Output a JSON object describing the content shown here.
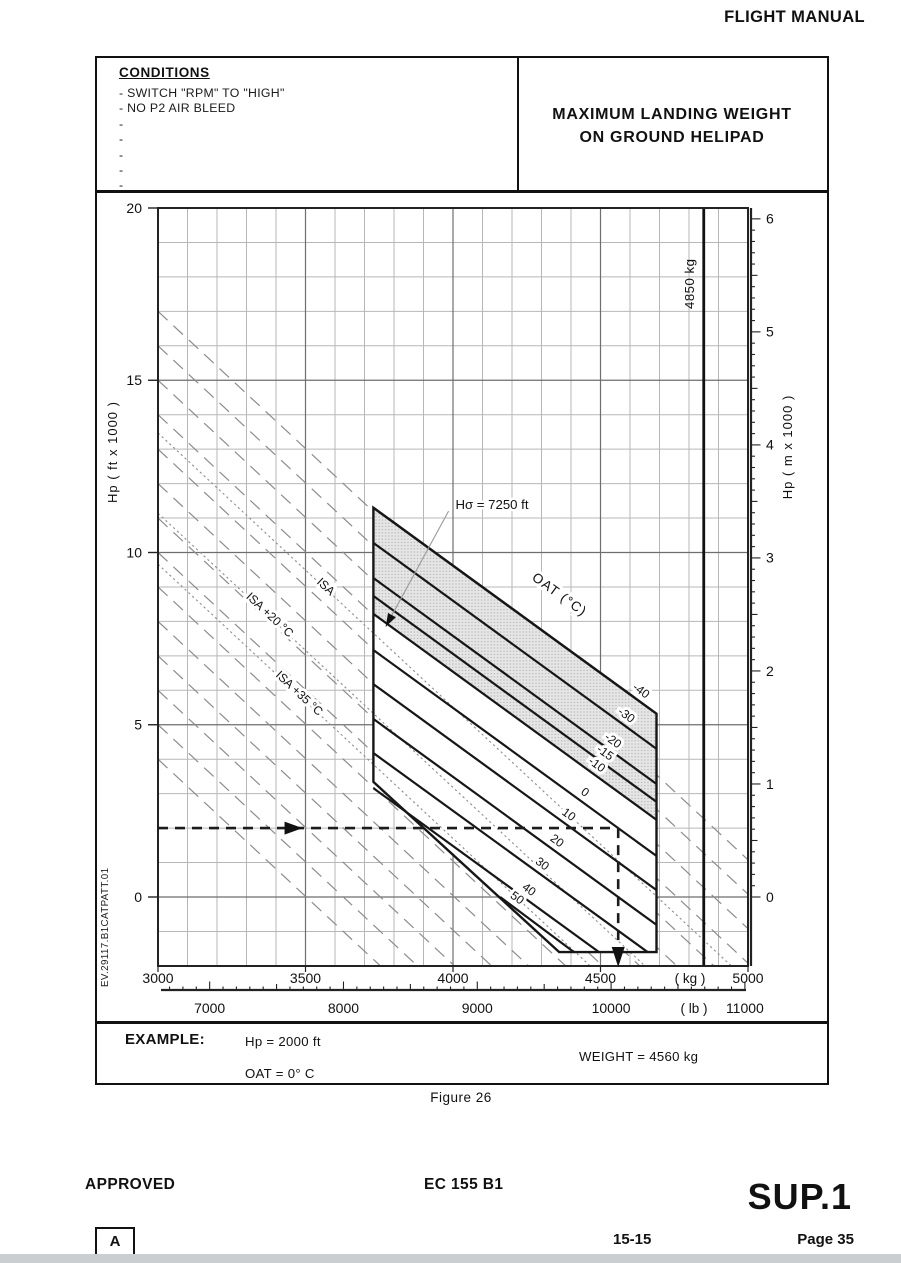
{
  "page": {
    "header": "FLIGHT MANUAL",
    "figure": "Figure 26",
    "side_code": "EV.29117.B1CATPATT.01",
    "footer": {
      "approved": "APPROVED",
      "aircraft": "EC 155 B1",
      "supplement": "SUP.1",
      "revision": "A",
      "section": "15-15",
      "page": "Page 35"
    }
  },
  "conditions": {
    "title": "CONDITIONS",
    "items": [
      "- SWITCH \"RPM\" TO \"HIGH\"",
      "- NO P2 AIR BLEED",
      "-",
      "-",
      "-",
      "-",
      "-"
    ]
  },
  "title": {
    "line1": "MAXIMUM LANDING WEIGHT",
    "line2": "ON GROUND HELIPAD"
  },
  "example": {
    "label": "EXAMPLE:",
    "hp": "Hp = 2000 ft",
    "oat": "OAT = 0° C",
    "weight": "WEIGHT = 4560 kg"
  },
  "chart_data": {
    "type": "line",
    "title": "MAXIMUM LANDING WEIGHT ON GROUND HELIPAD",
    "x_axis": {
      "unit_primary": "( kg )",
      "ticks_kg": [
        3000,
        3500,
        4000,
        4500,
        5000
      ],
      "kg_range": [
        3000,
        5000
      ],
      "unit_secondary": "( lb )",
      "ticks_lb": [
        7000,
        8000,
        9000,
        10000,
        11000
      ],
      "lb_minor_tick": 100,
      "kg_per_lb": 0.45359
    },
    "y_axis": {
      "left_label": "Hp ( ft x 1000 )",
      "left_ticks_ft_x1000": [
        0,
        5,
        10,
        15,
        20
      ],
      "ft_range": [
        -2000,
        20000
      ],
      "right_label": "Hp ( m x 1000 )",
      "right_ticks_m_x1000": [
        0,
        1,
        2,
        3,
        4,
        5,
        6
      ],
      "ft_per_m": 3.28084
    },
    "grid": {
      "minor_kg": 100,
      "major_kg": 500,
      "minor_ft": 1000,
      "major_ft": 5000
    },
    "max_weight_line": {
      "kg": 4850,
      "label": "4850 kg"
    },
    "envelope_kg_ft": [
      [
        3730,
        11300
      ],
      [
        4690,
        5320
      ],
      [
        4690,
        -1600
      ],
      [
        4360,
        -1600
      ],
      [
        3730,
        3340
      ]
    ],
    "shaded_region_kg_ft": [
      [
        3730,
        11300
      ],
      [
        4690,
        5320
      ],
      [
        4690,
        2240
      ],
      [
        3730,
        8220
      ]
    ],
    "oat": {
      "axis_label": "OAT (°C)",
      "lines": [
        {
          "label": "-40",
          "from": [
            3730,
            11300
          ],
          "to": [
            4690,
            5320
          ],
          "label_kg": 4630
        },
        {
          "label": "-30",
          "from": [
            3730,
            10280
          ],
          "to": [
            4690,
            4300
          ],
          "label_kg": 4580
        },
        {
          "label": "-20",
          "from": [
            3730,
            9260
          ],
          "to": [
            4690,
            3280
          ],
          "label_kg": 4535
        },
        {
          "label": "-15",
          "from": [
            3730,
            8740
          ],
          "to": [
            4690,
            2760
          ],
          "label_kg": 4508
        },
        {
          "label": "-10",
          "from": [
            3730,
            8220
          ],
          "to": [
            4690,
            2240
          ],
          "label_kg": 4480
        },
        {
          "label": "0",
          "from": [
            3730,
            7170
          ],
          "to": [
            4690,
            1190
          ],
          "label_kg": 4440
        },
        {
          "label": "10",
          "from": [
            3730,
            6180
          ],
          "to": [
            4690,
            200
          ],
          "label_kg": 4385
        },
        {
          "label": "20",
          "from": [
            3730,
            5170
          ],
          "to": [
            4690,
            -810
          ],
          "label_kg": 4345
        },
        {
          "label": "30",
          "from": [
            3730,
            4180
          ],
          "to": [
            4660,
            -1600
          ],
          "label_kg": 4295
        },
        {
          "label": "40",
          "from": [
            3730,
            3160
          ],
          "to": [
            4495,
            -1600
          ],
          "label_kg": 4250
        },
        {
          "label": "50",
          "from": [
            4160,
            0
          ],
          "to": [
            4410,
            -1600
          ],
          "label_kg": 4210
        }
      ]
    },
    "isa_reference": {
      "slope_ft_per_kg": -7.96,
      "dashed_ft_at_3000kg": [
        17000,
        16000,
        15000,
        14000,
        13000,
        12000,
        11000,
        10000,
        9000,
        8000,
        7000,
        6000,
        5000,
        4000
      ],
      "labeled": [
        {
          "label": "ISA",
          "ft_at_3000kg": 13470,
          "label_kg": 3560
        },
        {
          "label": "ISA +20 °C",
          "ft_at_3000kg": 11140,
          "label_kg": 3370
        },
        {
          "label": "ISA +35 °C",
          "ft_at_3000kg": 9660,
          "label_kg": 3470
        }
      ]
    },
    "annotation": {
      "text": "Hσ = 7250 ft",
      "leader_from_kg_ft": [
        3985,
        11200
      ],
      "leader_to_kg_ft": [
        3772,
        7850
      ]
    },
    "example_path": {
      "hp_ft": 2000,
      "oat_c": 0,
      "weight_kg": 4560,
      "h_arrow_kg": 3490
    }
  }
}
